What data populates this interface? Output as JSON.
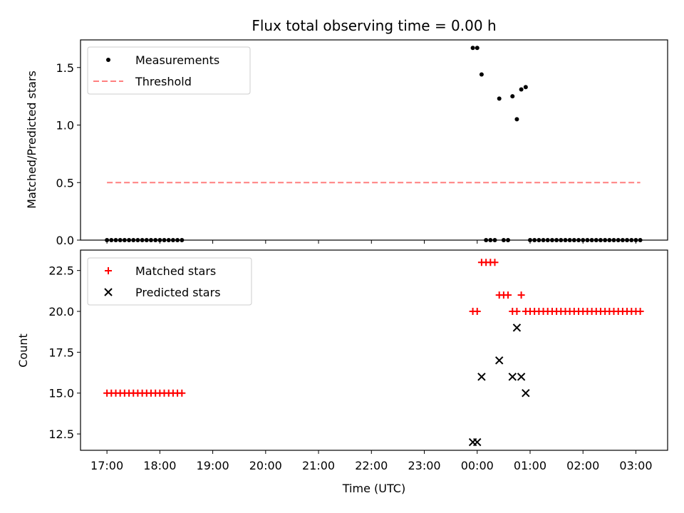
{
  "chart_data": [
    {
      "type": "scatter",
      "title": "Flux total observing time = 0.00 h",
      "xlabel": "",
      "ylabel": "Matched/Predicted stars",
      "xlim": [
        -0.5,
        10.6
      ],
      "ylim": [
        0,
        1.74
      ],
      "yticks": [
        "0.0",
        "0.5",
        "1.0",
        "1.5"
      ],
      "grid": false,
      "legend_position": "upper left",
      "series": [
        {
          "name": "Measurements",
          "kind": "points",
          "color": "#000000",
          "marker": "dot",
          "x": [
            0.0,
            0.083,
            0.167,
            0.25,
            0.333,
            0.417,
            0.5,
            0.583,
            0.667,
            0.75,
            0.833,
            0.917,
            1.0,
            1.083,
            1.167,
            1.25,
            1.333,
            1.417,
            6.917,
            7.0,
            7.083,
            7.167,
            7.25,
            7.333,
            7.417,
            7.5,
            7.583,
            7.667,
            7.75,
            7.833,
            7.917,
            8.0,
            8.083,
            8.167,
            8.25,
            8.333,
            8.417,
            8.5,
            8.583,
            8.667,
            8.75,
            8.833,
            8.917,
            9.0,
            9.083,
            9.167,
            9.25,
            9.333,
            9.417,
            9.5,
            9.583,
            9.667,
            9.75,
            9.833,
            9.917,
            10.0,
            10.083
          ],
          "y": [
            0,
            0,
            0,
            0,
            0,
            0,
            0,
            0,
            0,
            0,
            0,
            0,
            0,
            0,
            0,
            0,
            0,
            0,
            1.67,
            1.67,
            1.44,
            0,
            0,
            0,
            1.23,
            0,
            0,
            1.25,
            1.05,
            1.31,
            1.33,
            0,
            0,
            0,
            0,
            0,
            0,
            0,
            0,
            0,
            0,
            0,
            0,
            0,
            0,
            0,
            0,
            0,
            0,
            0,
            0,
            0,
            0,
            0,
            0,
            0,
            0
          ]
        },
        {
          "name": "Threshold",
          "kind": "line",
          "color": "#ff7f7f",
          "style": "dashed",
          "x": [
            0.0,
            10.083
          ],
          "y": [
            0.5,
            0.5
          ]
        }
      ]
    },
    {
      "type": "scatter",
      "title": "",
      "xlabel": "Time (UTC)",
      "ylabel": "Count",
      "xlim": [
        -0.5,
        10.6
      ],
      "ylim": [
        11.5,
        23.75
      ],
      "xticks": [
        "17:00",
        "18:00",
        "19:00",
        "20:00",
        "21:00",
        "22:00",
        "23:00",
        "00:00",
        "01:00",
        "02:00",
        "03:00"
      ],
      "yticks": [
        "12.5",
        "15.0",
        "17.5",
        "20.0",
        "22.5"
      ],
      "grid": false,
      "legend_position": "upper left",
      "series": [
        {
          "name": "Matched stars",
          "kind": "points",
          "color": "#ff0000",
          "marker": "plus",
          "x": [
            0.0,
            0.083,
            0.167,
            0.25,
            0.333,
            0.417,
            0.5,
            0.583,
            0.667,
            0.75,
            0.833,
            0.917,
            1.0,
            1.083,
            1.167,
            1.25,
            1.333,
            1.417,
            6.917,
            7.0,
            7.083,
            7.167,
            7.25,
            7.333,
            7.417,
            7.5,
            7.583,
            7.667,
            7.75,
            7.833,
            7.917,
            8.0,
            8.083,
            8.167,
            8.25,
            8.333,
            8.417,
            8.5,
            8.583,
            8.667,
            8.75,
            8.833,
            8.917,
            9.0,
            9.083,
            9.167,
            9.25,
            9.333,
            9.417,
            9.5,
            9.583,
            9.667,
            9.75,
            9.833,
            9.917,
            10.0,
            10.083
          ],
          "y": [
            15,
            15,
            15,
            15,
            15,
            15,
            15,
            15,
            15,
            15,
            15,
            15,
            15,
            15,
            15,
            15,
            15,
            15,
            20,
            20,
            23,
            23,
            23,
            23,
            21,
            21,
            21,
            20,
            20,
            21,
            20,
            20,
            20,
            20,
            20,
            20,
            20,
            20,
            20,
            20,
            20,
            20,
            20,
            20,
            20,
            20,
            20,
            20,
            20,
            20,
            20,
            20,
            20,
            20,
            20,
            20,
            20
          ]
        },
        {
          "name": "Predicted stars",
          "kind": "points",
          "color": "#000000",
          "marker": "x",
          "x": [
            6.917,
            7.0,
            7.083,
            7.417,
            7.667,
            7.75,
            7.833,
            7.917
          ],
          "y": [
            12,
            12,
            16,
            17,
            16,
            19,
            16,
            15
          ]
        }
      ]
    }
  ]
}
